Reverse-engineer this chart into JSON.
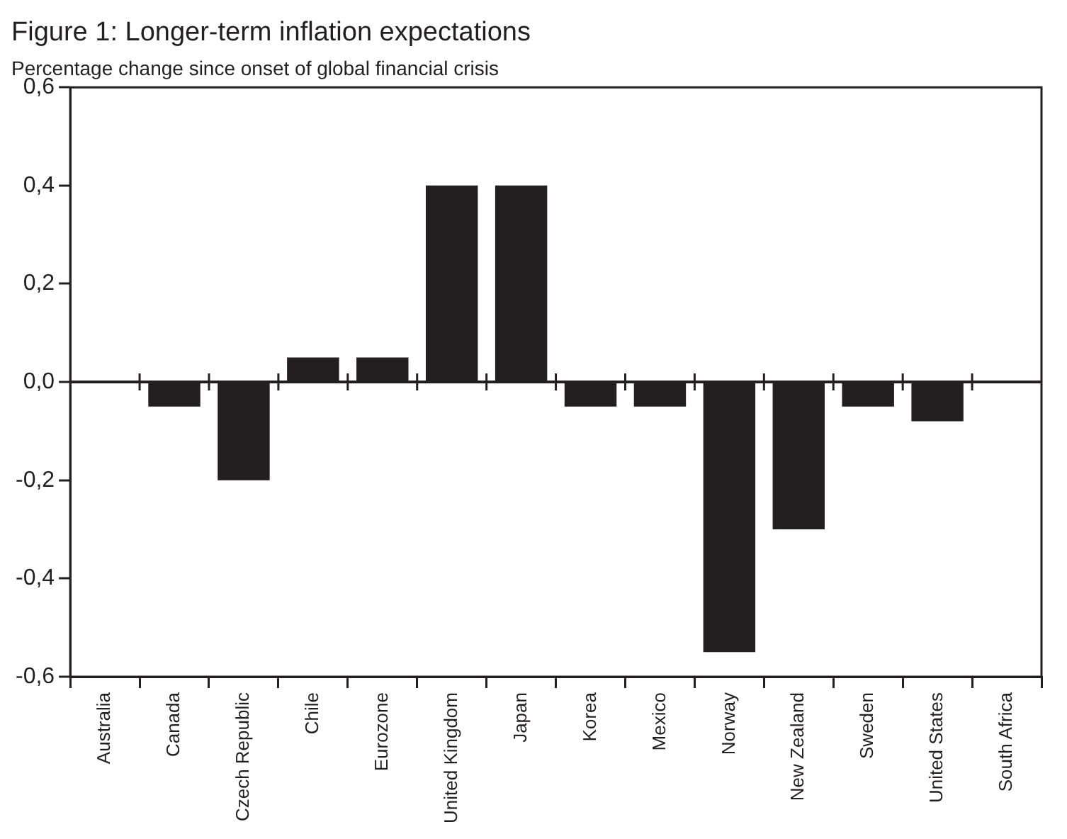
{
  "chart_data": {
    "type": "bar",
    "title": "Figure 1: Longer-term inflation expectations",
    "subtitle": "Percentage change since onset of global financial crisis",
    "categories": [
      "Australia",
      "Canada",
      "Czech Republic",
      "Chile",
      "Eurozone",
      "United Kingdom",
      "Japan",
      "Korea",
      "Mexico",
      "Norway",
      "New Zealand",
      "Sweden",
      "United States",
      "South Africa"
    ],
    "values": [
      0,
      -0.05,
      -0.2,
      0.05,
      0.05,
      0.4,
      0.4,
      -0.05,
      -0.05,
      -0.55,
      -0.3,
      -0.05,
      -0.08,
      0
    ],
    "color": "#231f20",
    "ylim": [
      -0.6,
      0.6
    ],
    "yticks": [
      {
        "value": -0.6,
        "label": "-0,6"
      },
      {
        "value": -0.4,
        "label": "-0,4"
      },
      {
        "value": -0.2,
        "label": "-0,2"
      },
      {
        "value": 0,
        "label": "0,0"
      },
      {
        "value": 0.2,
        "label": "0,2"
      },
      {
        "value": 0.4,
        "label": "0,4"
      },
      {
        "value": 0.6,
        "label": "0,6"
      }
    ]
  }
}
